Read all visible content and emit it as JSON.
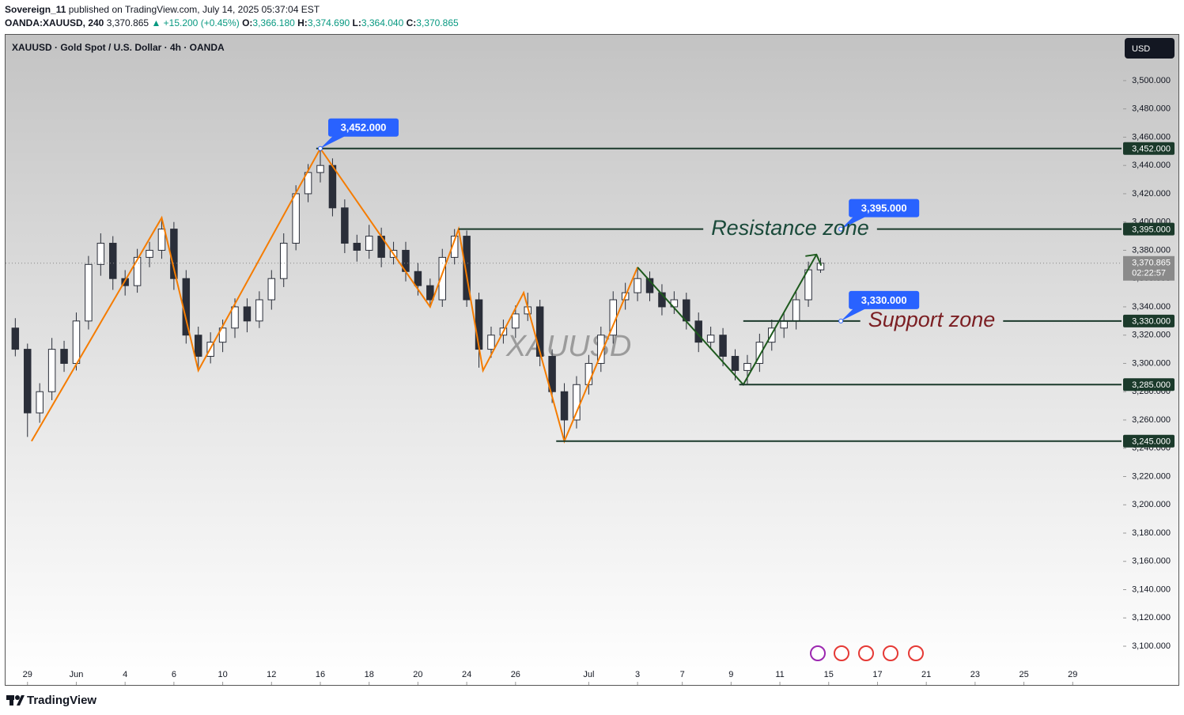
{
  "header": {
    "publisher": "Sovereign_11",
    "published": "published on TradingView.com, July 14, 2025 05:37:04 EST",
    "symbol": "OANDA:XAUUSD, 240",
    "last": "3,370.865",
    "change": "▲ +15.200 (+0.45%)",
    "ohlc": [
      {
        "key": "O:",
        "value": "3,366.180"
      },
      {
        "key": "H:",
        "value": "3,374.690"
      },
      {
        "key": "L:",
        "value": "3,364.040"
      },
      {
        "key": "C:",
        "value": "3,370.865"
      }
    ]
  },
  "chart_data": {
    "type": "candlestick",
    "title": "XAUUSD · Gold Spot / U.S. Dollar · 4h · OANDA",
    "watermark": "XAUUSD",
    "currency": "USD",
    "x": [
      -3,
      0,
      3,
      6,
      9,
      12,
      15,
      18,
      21,
      24,
      27,
      30,
      33,
      36,
      39,
      42,
      45,
      48,
      51,
      54,
      57,
      60,
      63,
      66,
      69,
      72,
      75,
      78,
      81,
      84,
      87,
      90,
      93,
      96,
      99,
      102,
      105,
      108,
      111,
      114,
      117,
      120,
      123,
      126,
      129,
      132,
      135,
      138,
      141,
      144,
      147,
      150,
      153,
      156,
      159,
      162,
      165,
      168,
      171,
      174,
      177,
      180,
      183,
      186,
      189,
      192,
      195
    ],
    "open": [
      3325,
      3310,
      3265,
      3280,
      3310,
      3300,
      3330,
      3370,
      3385,
      3360,
      3355,
      3375,
      3380,
      3395,
      3360,
      3320,
      3305,
      3315,
      3325,
      3340,
      3330,
      3345,
      3360,
      3385,
      3420,
      3435,
      3440,
      3410,
      3385,
      3380,
      3390,
      3375,
      3380,
      3365,
      3355,
      3345,
      3375,
      3390,
      3345,
      3310,
      3320,
      3325,
      3335,
      3340,
      3305,
      3280,
      3260,
      3285,
      3300,
      3320,
      3345,
      3350,
      3360,
      3350,
      3340,
      3345,
      3330,
      3315,
      3320,
      3305,
      3295,
      3300,
      3315,
      3325,
      3330,
      3345,
      3366.18
    ],
    "high": [
      3332,
      3314,
      3286,
      3318,
      3316,
      3336,
      3376,
      3392,
      3390,
      3366,
      3381,
      3386,
      3403,
      3400,
      3366,
      3326,
      3322,
      3331,
      3346,
      3346,
      3351,
      3366,
      3392,
      3426,
      3441,
      3452,
      3445,
      3416,
      3391,
      3398,
      3396,
      3386,
      3386,
      3371,
      3360,
      3381,
      3395,
      3394,
      3350,
      3326,
      3331,
      3341,
      3350,
      3345,
      3310,
      3286,
      3291,
      3306,
      3326,
      3351,
      3357,
      3368,
      3365,
      3356,
      3351,
      3350,
      3336,
      3326,
      3325,
      3310,
      3306,
      3321,
      3331,
      3336,
      3351,
      3372,
      3374.69
    ],
    "low": [
      3305,
      3248,
      3258,
      3274,
      3294,
      3295,
      3324,
      3362,
      3352,
      3348,
      3350,
      3368,
      3374,
      3352,
      3314,
      3295,
      3300,
      3308,
      3318,
      3322,
      3325,
      3338,
      3354,
      3380,
      3414,
      3428,
      3404,
      3378,
      3372,
      3374,
      3368,
      3370,
      3358,
      3348,
      3340,
      3340,
      3370,
      3340,
      3297,
      3304,
      3314,
      3318,
      3330,
      3298,
      3272,
      3246,
      3254,
      3278,
      3294,
      3314,
      3338,
      3344,
      3344,
      3334,
      3335,
      3324,
      3308,
      3310,
      3298,
      3288,
      3285,
      3294,
      3309,
      3318,
      3324,
      3340,
      3364.04
    ],
    "close": [
      3310,
      3265,
      3280,
      3310,
      3300,
      3330,
      3370,
      3385,
      3360,
      3355,
      3375,
      3380,
      3395,
      3360,
      3320,
      3305,
      3315,
      3325,
      3340,
      3330,
      3345,
      3360,
      3385,
      3420,
      3435,
      3440,
      3410,
      3385,
      3380,
      3390,
      3375,
      3380,
      3365,
      3355,
      3345,
      3375,
      3390,
      3345,
      3310,
      3320,
      3325,
      3335,
      3340,
      3305,
      3280,
      3260,
      3285,
      3300,
      3320,
      3345,
      3350,
      3360,
      3350,
      3340,
      3345,
      3330,
      3315,
      3320,
      3305,
      3295,
      3300,
      3315,
      3325,
      3330,
      3345,
      3366.18,
      3370.865
    ],
    "up_color": "#ffffff",
    "down_color": "#2a2e39",
    "xlim": [
      -5.4,
      269
    ],
    "xticks": [
      {
        "value": 0,
        "label": "29"
      },
      {
        "value": 12,
        "label": "Jun"
      },
      {
        "value": 24,
        "label": "4"
      },
      {
        "value": 36,
        "label": "6"
      },
      {
        "value": 48,
        "label": "10"
      },
      {
        "value": 60,
        "label": "12"
      },
      {
        "value": 72,
        "label": "16"
      },
      {
        "value": 84,
        "label": "18"
      },
      {
        "value": 96,
        "label": "20"
      },
      {
        "value": 108,
        "label": "24"
      },
      {
        "value": 120,
        "label": "26"
      },
      {
        "value": 138,
        "label": "Jul"
      },
      {
        "value": 150,
        "label": "3"
      },
      {
        "value": 161,
        "label": "7"
      },
      {
        "value": 173,
        "label": "9"
      },
      {
        "value": 185,
        "label": "11"
      },
      {
        "value": 197,
        "label": "15"
      },
      {
        "value": 209,
        "label": "17"
      },
      {
        "value": 221,
        "label": "21"
      },
      {
        "value": 233,
        "label": "23"
      },
      {
        "value": 245,
        "label": "25"
      },
      {
        "value": 257,
        "label": "29"
      }
    ],
    "ylim": [
      3072.6,
      3532.4
    ],
    "yticks": [
      {
        "value": 3100,
        "label": "3,100.000"
      },
      {
        "value": 3120,
        "label": "3,120.000"
      },
      {
        "value": 3140,
        "label": "3,140.000"
      },
      {
        "value": 3160,
        "label": "3,160.000"
      },
      {
        "value": 3180,
        "label": "3,180.000"
      },
      {
        "value": 3200,
        "label": "3,200.000"
      },
      {
        "value": 3220,
        "label": "3,220.000"
      },
      {
        "value": 3240,
        "label": "3,240.000"
      },
      {
        "value": 3260,
        "label": "3,260.000"
      },
      {
        "value": 3280,
        "label": "3,280.000"
      },
      {
        "value": 3300,
        "label": "3,300.000"
      },
      {
        "value": 3320,
        "label": "3,320.000"
      },
      {
        "value": 3340,
        "label": "3,340.000"
      },
      {
        "value": 3360,
        "label": "3,360.000"
      },
      {
        "value": 3380,
        "label": "3,380.000"
      },
      {
        "value": 3400,
        "label": "3,400.000"
      },
      {
        "value": 3420,
        "label": "3,420.000"
      },
      {
        "value": 3440,
        "label": "3,440.000"
      },
      {
        "value": 3460,
        "label": "3,460.000"
      },
      {
        "value": 3480,
        "label": "3,480.000"
      },
      {
        "value": 3500,
        "label": "3,500.000"
      }
    ],
    "levels": [
      {
        "value": 3452,
        "label": "3,452.000",
        "x_start": 71
      },
      {
        "value": 3395,
        "label": "3,395.000",
        "x_start": 106
      },
      {
        "value": 3330,
        "label": "3,330.000",
        "x_start": 176
      },
      {
        "value": 3285,
        "label": "3,285.000",
        "x_start": 175
      },
      {
        "value": 3245,
        "label": "3,245.000",
        "x_start": 130
      }
    ],
    "level_color": "#1b3a2b",
    "callouts": [
      {
        "value": 3452,
        "label": "3,452.000",
        "x": 72
      },
      {
        "value": 3395,
        "label": "3,395.000",
        "x": 200
      },
      {
        "value": 3330,
        "label": "3,330.000",
        "x": 200
      }
    ],
    "callout_color": "#2962ff",
    "zigzag": {
      "color": "#f57c00",
      "x": [
        1,
        33,
        42,
        72,
        99,
        106,
        112,
        122,
        132,
        150
      ],
      "y": [
        3245,
        3403,
        3295,
        3452,
        3340,
        3395,
        3295,
        3350,
        3245,
        3368
      ]
    },
    "trend": {
      "color": "#1e5a1e",
      "x": [
        150,
        176,
        194
      ],
      "y": [
        3368,
        3285,
        3377
      ]
    },
    "annotations": [
      {
        "text": "Resistance zone",
        "value": 3395,
        "color": "#1a4a3a"
      },
      {
        "text": "Support zone",
        "value": 3330,
        "color": "#7b1e22"
      }
    ],
    "last_price": {
      "value": 3370.865,
      "label": "3,370.865",
      "countdown": "02:22:57"
    }
  },
  "footer": {
    "brand": "TradingView"
  }
}
